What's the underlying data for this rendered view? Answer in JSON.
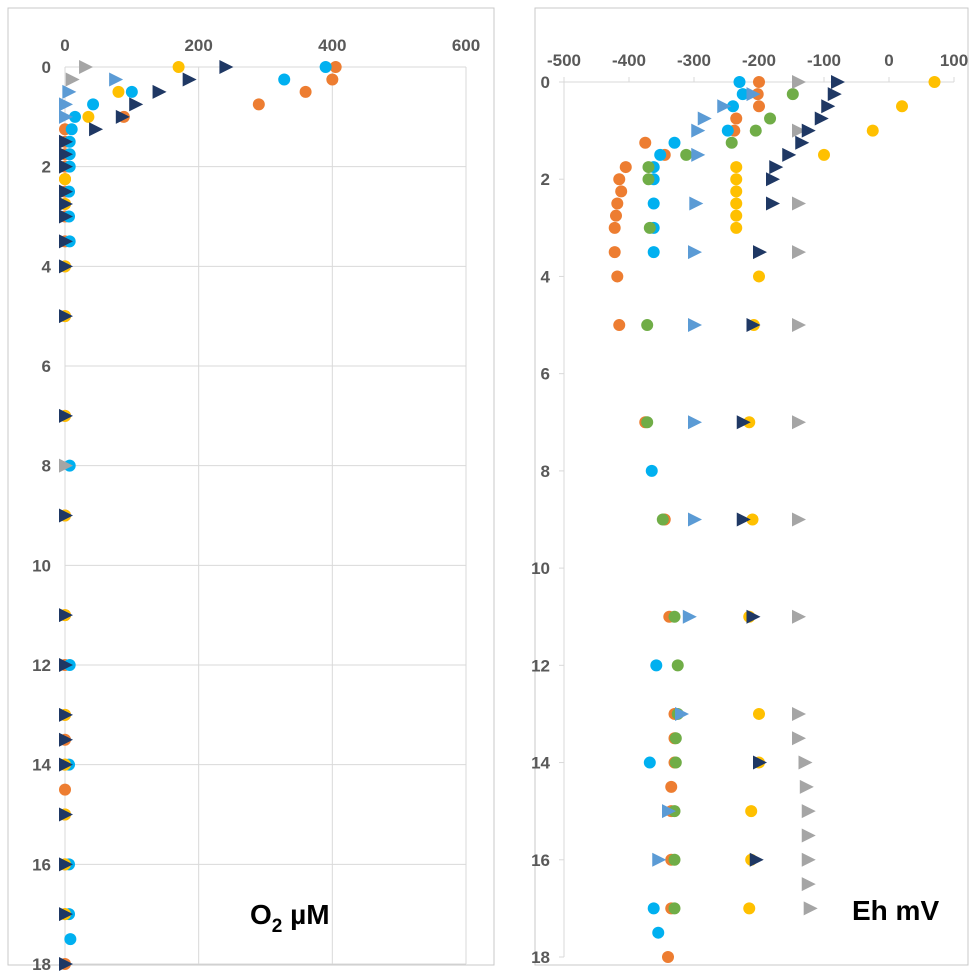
{
  "chart_data": [
    {
      "type": "scatter",
      "label": "O₂ µM",
      "label_main": "O",
      "label_sub": "2",
      "label_rest": " µM",
      "x_ticks": [
        0,
        200,
        400,
        600
      ],
      "y_ticks": [
        0,
        2,
        4,
        6,
        8,
        10,
        12,
        14,
        16,
        18
      ],
      "xlim": [
        0,
        600
      ],
      "ylim": [
        0,
        18
      ],
      "y_inverted": true,
      "x_axis_position": "top",
      "grid": true,
      "series": [
        {
          "color": "#ED7D31",
          "marker": "circle",
          "points": [
            [
              405,
              0
            ],
            [
              400,
              0.25
            ],
            [
              360,
              0.5
            ],
            [
              290,
              0.75
            ],
            [
              88,
              1
            ],
            [
              0,
              1.25
            ],
            [
              0,
              1.5
            ],
            [
              0,
              1.75
            ],
            [
              0,
              2
            ],
            [
              0,
              2.25
            ],
            [
              0,
              2.5
            ],
            [
              0,
              2.75
            ],
            [
              0,
              3
            ],
            [
              0,
              3.5
            ],
            [
              0,
              4
            ],
            [
              0,
              5
            ],
            [
              0,
              7
            ],
            [
              0,
              9
            ],
            [
              0,
              11
            ],
            [
              0,
              12
            ],
            [
              0,
              13
            ],
            [
              0,
              13.5
            ],
            [
              0,
              14
            ],
            [
              0,
              14.5
            ],
            [
              0,
              15
            ],
            [
              0,
              16
            ],
            [
              0,
              17
            ],
            [
              0,
              18
            ]
          ]
        },
        {
          "color": "#00B0F0",
          "marker": "circle",
          "points": [
            [
              390,
              0
            ],
            [
              328,
              0.25
            ],
            [
              100,
              0.5
            ],
            [
              42,
              0.75
            ],
            [
              15,
              1
            ],
            [
              10,
              1.25
            ],
            [
              7,
              1.5
            ],
            [
              7,
              1.75
            ],
            [
              7,
              2
            ],
            [
              6,
              2.5
            ],
            [
              6,
              3
            ],
            [
              7,
              3.5
            ],
            [
              7,
              8
            ],
            [
              7,
              12
            ],
            [
              6,
              14
            ],
            [
              6,
              16
            ],
            [
              6,
              17
            ],
            [
              8,
              17.5
            ]
          ]
        },
        {
          "color": "#FFC000",
          "marker": "circle",
          "points": [
            [
              170,
              0
            ],
            [
              80,
              0.5
            ],
            [
              35,
              1
            ],
            [
              0,
              2.25
            ],
            [
              0,
              2.75
            ],
            [
              0,
              4
            ],
            [
              0,
              5
            ],
            [
              0,
              7
            ],
            [
              0,
              9
            ],
            [
              0,
              11
            ],
            [
              0,
              13
            ],
            [
              0,
              14
            ],
            [
              0,
              15
            ],
            [
              0,
              16
            ],
            [
              0,
              17
            ]
          ]
        },
        {
          "color": "#A5A5A5",
          "marker": "triangle",
          "points": [
            [
              30,
              0
            ],
            [
              10,
              0.25
            ],
            [
              0,
              8
            ]
          ]
        },
        {
          "color": "#5B9BD5",
          "marker": "triangle",
          "points": [
            [
              75,
              0.25
            ],
            [
              5,
              0.5
            ],
            [
              0,
              0.75
            ],
            [
              0,
              1
            ]
          ]
        },
        {
          "color": "#1F3864",
          "marker": "triangle",
          "points": [
            [
              240,
              0
            ],
            [
              185,
              0.25
            ],
            [
              140,
              0.5
            ],
            [
              105,
              0.75
            ],
            [
              85,
              1
            ],
            [
              45,
              1.25
            ],
            [
              0,
              1.5
            ],
            [
              0,
              1.75
            ],
            [
              0,
              2
            ],
            [
              0,
              2.5
            ],
            [
              0,
              2.75
            ],
            [
              0,
              3
            ],
            [
              0,
              3.5
            ],
            [
              0,
              4
            ],
            [
              0,
              5
            ],
            [
              0,
              7
            ],
            [
              0,
              9
            ],
            [
              0,
              11
            ],
            [
              0,
              12
            ],
            [
              0,
              13
            ],
            [
              0,
              13.5
            ],
            [
              0,
              14
            ],
            [
              0,
              15
            ],
            [
              0,
              16
            ],
            [
              0,
              17
            ],
            [
              0,
              18
            ]
          ]
        }
      ]
    },
    {
      "type": "scatter",
      "label": "Eh mV",
      "x_ticks": [
        -500,
        -400,
        -300,
        -200,
        -100,
        0,
        100
      ],
      "y_ticks": [
        0,
        2,
        4,
        6,
        8,
        10,
        12,
        14,
        16,
        18
      ],
      "xlim": [
        -500,
        100
      ],
      "ylim": [
        0,
        18
      ],
      "y_inverted": true,
      "x_axis_position": "top",
      "grid": false,
      "series": [
        {
          "color": "#ED7D31",
          "marker": "circle",
          "points": [
            [
              -200,
              0
            ],
            [
              -202,
              0.25
            ],
            [
              -200,
              0.5
            ],
            [
              -235,
              0.75
            ],
            [
              -238,
              1
            ],
            [
              -375,
              1.25
            ],
            [
              -345,
              1.5
            ],
            [
              -405,
              1.75
            ],
            [
              -415,
              2
            ],
            [
              -412,
              2.25
            ],
            [
              -418,
              2.5
            ],
            [
              -420,
              2.75
            ],
            [
              -422,
              3
            ],
            [
              -422,
              3.5
            ],
            [
              -418,
              4
            ],
            [
              -415,
              5
            ],
            [
              -375,
              7
            ],
            [
              -345,
              9
            ],
            [
              -338,
              11
            ],
            [
              -330,
              13
            ],
            [
              -330,
              13.5
            ],
            [
              -330,
              14
            ],
            [
              -335,
              14.5
            ],
            [
              -335,
              15
            ],
            [
              -335,
              16
            ],
            [
              -335,
              17
            ],
            [
              -340,
              18
            ]
          ]
        },
        {
          "color": "#00B0F0",
          "marker": "circle",
          "points": [
            [
              -230,
              0
            ],
            [
              -225,
              0.25
            ],
            [
              -240,
              0.5
            ],
            [
              -248,
              1
            ],
            [
              -330,
              1.25
            ],
            [
              -352,
              1.5
            ],
            [
              -362,
              1.75
            ],
            [
              -362,
              2
            ],
            [
              -362,
              2.5
            ],
            [
              -362,
              3
            ],
            [
              -362,
              3.5
            ],
            [
              -365,
              8
            ],
            [
              -358,
              12
            ],
            [
              -368,
              14
            ],
            [
              -362,
              17
            ],
            [
              -355,
              17.5
            ]
          ]
        },
        {
          "color": "#70AD47",
          "marker": "circle",
          "points": [
            [
              -148,
              0.25
            ],
            [
              -183,
              0.75
            ],
            [
              -205,
              1
            ],
            [
              -242,
              1.25
            ],
            [
              -312,
              1.5
            ],
            [
              -370,
              1.75
            ],
            [
              -370,
              2
            ],
            [
              -368,
              3
            ],
            [
              -372,
              5
            ],
            [
              -372,
              7
            ],
            [
              -348,
              9
            ],
            [
              -330,
              11
            ],
            [
              -325,
              12
            ],
            [
              -325,
              13
            ],
            [
              -328,
              13.5
            ],
            [
              -328,
              14
            ],
            [
              -330,
              15
            ],
            [
              -330,
              16
            ],
            [
              -330,
              17
            ]
          ]
        },
        {
          "color": "#FFC000",
          "marker": "circle",
          "points": [
            [
              70,
              0
            ],
            [
              20,
              0.5
            ],
            [
              -25,
              1
            ],
            [
              -100,
              1.5
            ],
            [
              -235,
              1.75
            ],
            [
              -235,
              2
            ],
            [
              -235,
              2.25
            ],
            [
              -235,
              2.5
            ],
            [
              -235,
              2.75
            ],
            [
              -235,
              3
            ],
            [
              -200,
              4
            ],
            [
              -208,
              5
            ],
            [
              -215,
              7
            ],
            [
              -210,
              9
            ],
            [
              -215,
              11
            ],
            [
              -200,
              13
            ],
            [
              -200,
              14
            ],
            [
              -212,
              15
            ],
            [
              -212,
              16
            ],
            [
              -215,
              17
            ]
          ]
        },
        {
          "color": "#A5A5A5",
          "marker": "triangle",
          "points": [
            [
              -140,
              0
            ],
            [
              -140,
              1
            ],
            [
              -140,
              2.5
            ],
            [
              -140,
              3.5
            ],
            [
              -140,
              5
            ],
            [
              -140,
              7
            ],
            [
              -140,
              9
            ],
            [
              -140,
              11
            ],
            [
              -140,
              13
            ],
            [
              -140,
              13.5
            ],
            [
              -130,
              14
            ],
            [
              -128,
              14.5
            ],
            [
              -125,
              15
            ],
            [
              -125,
              15.5
            ],
            [
              -125,
              16
            ],
            [
              -125,
              16.5
            ],
            [
              -122,
              17
            ]
          ]
        },
        {
          "color": "#5B9BD5",
          "marker": "triangle",
          "points": [
            [
              -210,
              0.25
            ],
            [
              -255,
              0.5
            ],
            [
              -285,
              0.75
            ],
            [
              -295,
              1
            ],
            [
              -295,
              1.5
            ],
            [
              -298,
              2.5
            ],
            [
              -300,
              3.5
            ],
            [
              -300,
              5
            ],
            [
              -300,
              7
            ],
            [
              -300,
              9
            ],
            [
              -308,
              11
            ],
            [
              -320,
              13
            ],
            [
              -340,
              15
            ],
            [
              -355,
              16
            ]
          ]
        },
        {
          "color": "#1F3864",
          "marker": "triangle",
          "points": [
            [
              -80,
              0
            ],
            [
              -85,
              0.25
            ],
            [
              -95,
              0.5
            ],
            [
              -105,
              0.75
            ],
            [
              -125,
              1
            ],
            [
              -135,
              1.25
            ],
            [
              -155,
              1.5
            ],
            [
              -175,
              1.75
            ],
            [
              -180,
              2
            ],
            [
              -180,
              2.5
            ],
            [
              -200,
              3.5
            ],
            [
              -210,
              5
            ],
            [
              -225,
              7
            ],
            [
              -225,
              9
            ],
            [
              -210,
              11
            ],
            [
              -200,
              14
            ],
            [
              -205,
              16
            ]
          ]
        }
      ]
    }
  ]
}
